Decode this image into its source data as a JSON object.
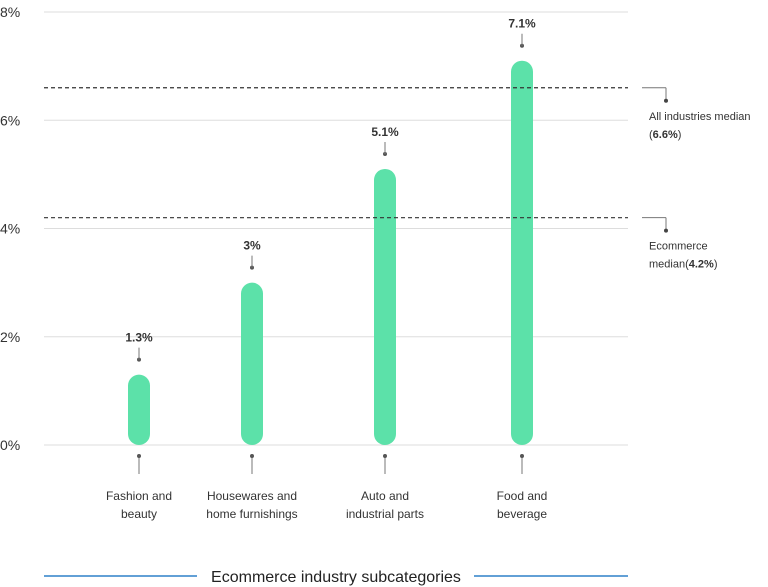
{
  "chart_data": {
    "type": "bar",
    "categories": [
      [
        "Fashion and",
        "beauty"
      ],
      [
        "Housewares and",
        "home furnishings"
      ],
      [
        "Auto and",
        "industrial parts"
      ],
      [
        "Food and",
        "beverage"
      ]
    ],
    "values": [
      1.3,
      3,
      5.1,
      7.1
    ],
    "value_labels": [
      "1.3%",
      "3%",
      "5.1%",
      "7.1%"
    ],
    "y_ticks": [
      0,
      2,
      4,
      6,
      8
    ],
    "y_tick_labels": [
      "0%",
      "2%",
      "4%",
      "6%",
      "8%"
    ],
    "ylim": [
      0,
      8
    ],
    "xlabel": "Ecommerce industry subcategories",
    "grid": true,
    "bar_color": "#5ce1a9",
    "reference_lines": [
      {
        "value": 6.6,
        "label_text": "All industries median",
        "value_text": "6.6%",
        "label_layout": "two-line"
      },
      {
        "value": 4.2,
        "label_text": "Ecommerce",
        "label_text_2": "median",
        "value_text": "4.2%",
        "label_layout": "split"
      }
    ]
  }
}
